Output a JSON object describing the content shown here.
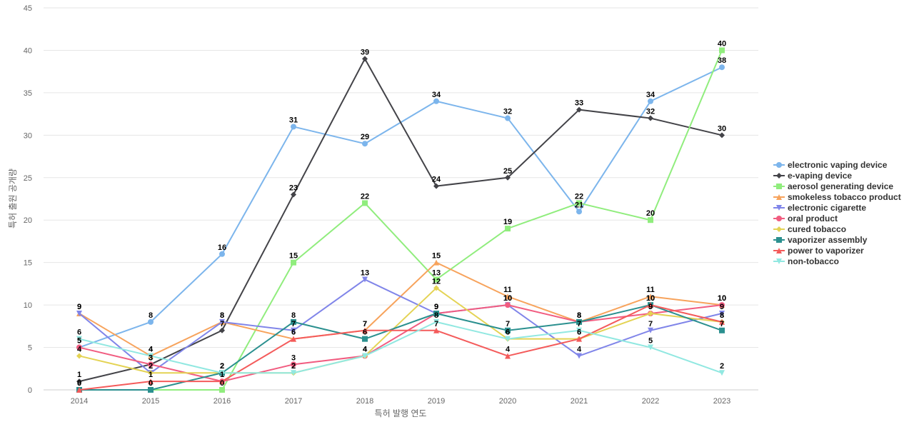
{
  "chart_data": {
    "type": "line",
    "title": "",
    "xlabel": "특허 발행 연도",
    "ylabel": "특허 출원 공개량",
    "x": [
      2014,
      2015,
      2016,
      2017,
      2018,
      2019,
      2020,
      2021,
      2022,
      2023
    ],
    "ylim": [
      0,
      45
    ],
    "yticks": [
      0,
      5,
      10,
      15,
      20,
      25,
      30,
      35,
      40,
      45
    ],
    "grid": true,
    "legend_position": "right",
    "series": [
      {
        "name": "electronic vaping device",
        "color": "#7cb5ec",
        "marker": "circle",
        "values": [
          5,
          8,
          16,
          31,
          29,
          34,
          32,
          21,
          34,
          38
        ]
      },
      {
        "name": "e-vaping device",
        "color": "#434348",
        "marker": "diamond",
        "values": [
          1,
          3,
          7,
          23,
          39,
          24,
          25,
          33,
          32,
          30
        ]
      },
      {
        "name": "aerosol generating device",
        "color": "#90ed7d",
        "marker": "square",
        "values": [
          0,
          0,
          0,
          15,
          22,
          13,
          19,
          22,
          20,
          40
        ]
      },
      {
        "name": "smokeless tobacco product",
        "color": "#f7a35c",
        "marker": "triangle",
        "values": [
          9,
          4,
          8,
          6,
          7,
          15,
          11,
          8,
          11,
          10
        ]
      },
      {
        "name": "electronic cigarette",
        "color": "#8085e9",
        "marker": "triangle-down",
        "values": [
          9,
          2,
          8,
          7,
          13,
          9,
          10,
          4,
          7,
          9
        ]
      },
      {
        "name": "oral product",
        "color": "#f15c80",
        "marker": "circle",
        "values": [
          5,
          3,
          1,
          3,
          4,
          9,
          10,
          8,
          9,
          10
        ]
      },
      {
        "name": "cured tobacco",
        "color": "#e4d354",
        "marker": "diamond",
        "values": [
          4,
          2,
          2,
          2,
          4,
          12,
          6,
          6,
          9,
          8
        ]
      },
      {
        "name": "vaporizer assembly",
        "color": "#2b908f",
        "marker": "square",
        "values": [
          0,
          0,
          2,
          8,
          6,
          9,
          7,
          8,
          10,
          7
        ]
      },
      {
        "name": "power to vaporizer",
        "color": "#f45b5b",
        "marker": "triangle",
        "values": [
          0,
          1,
          1,
          6,
          7,
          7,
          4,
          6,
          10,
          8
        ]
      },
      {
        "name": "non-tobacco",
        "color": "#91e8e1",
        "marker": "triangle-down",
        "values": [
          6,
          4,
          2,
          2,
          4,
          8,
          6,
          7,
          5,
          2
        ]
      }
    ]
  }
}
